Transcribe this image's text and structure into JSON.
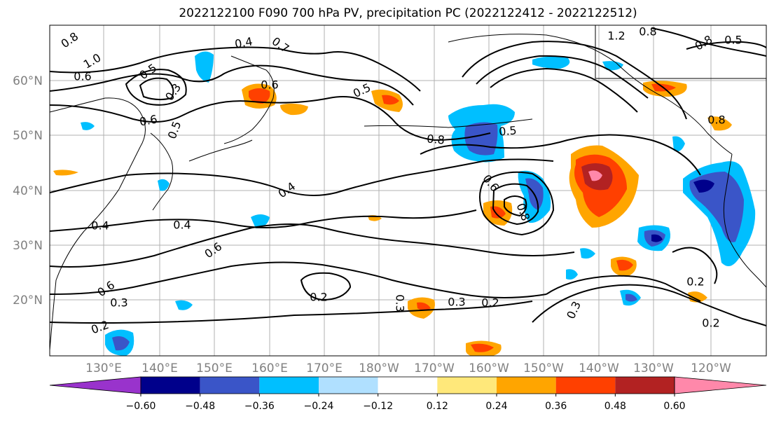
{
  "title": "2022122100 F090 700 hPa PV, precipitation PC (2022122412 - 2022122512)",
  "map": {
    "lon_ticks": [
      "130°E",
      "140°E",
      "150°E",
      "160°E",
      "170°E",
      "180°W",
      "170°W",
      "160°W",
      "150°W",
      "140°W",
      "130°W",
      "120°W"
    ],
    "lat_ticks": [
      "60°N",
      "50°N",
      "40°N",
      "30°N",
      "20°N"
    ],
    "contour_labels": [
      "0.8",
      "1.0",
      "0.6",
      "0.5",
      "0.4",
      "0.3",
      "0.6",
      "0.5",
      "0.6",
      "0.5",
      "0.7",
      "0.8",
      "0.5",
      "0.6",
      "0.4",
      "0.4",
      "0.4",
      "0.6",
      "0.3",
      "0.2",
      "0.2",
      "0.3",
      "0.3",
      "0.2",
      "0.3",
      "0.2",
      "0.2",
      "0.6",
      "0.8",
      "1.2",
      "0.8",
      "0.8",
      "0.5",
      "0.8"
    ],
    "colors": {
      "land_line": "#000000",
      "grid": "#b0b0b0",
      "tick_label": "#808080"
    }
  },
  "colorbar": {
    "labels": [
      "−0.60",
      "−0.48",
      "−0.36",
      "−0.24",
      "−0.12",
      "0.12",
      "0.24",
      "0.36",
      "0.48",
      "0.60"
    ],
    "colors": [
      "#9933cc",
      "#00008b",
      "#3a55c8",
      "#00bfff",
      "#b0e0ff",
      "#ffffff",
      "#ffe87a",
      "#ffa500",
      "#ff4000",
      "#b22222",
      "#ff88aa"
    ]
  }
}
